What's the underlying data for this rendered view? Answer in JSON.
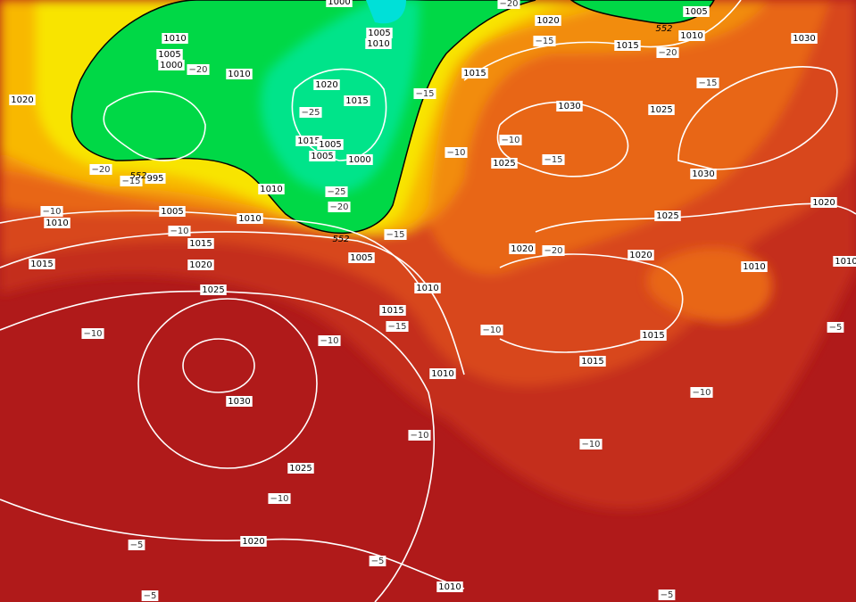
{
  "isobar_labels": [
    "1000",
    "1005",
    "1010",
    "1010",
    "1005",
    "1000",
    "1010",
    "1020",
    "1015",
    "1015",
    "1005",
    "1005",
    "1000",
    "1010",
    "995",
    "1020",
    "1005",
    "1010",
    "1010",
    "1015",
    "1015",
    "1020",
    "1025",
    "1005",
    "1010",
    "1015",
    "1030",
    "1025",
    "1020",
    "1010",
    "1010",
    "1015",
    "1020",
    "1015",
    "1005",
    "1010",
    "1030",
    "1030",
    "1025",
    "1025",
    "1030",
    "1025",
    "1020",
    "1020",
    "1020",
    "1010",
    "1015",
    "1015",
    "1010"
  ],
  "temperature_labels": [
    "−20",
    "−15",
    "−20",
    "−15",
    "−20",
    "−25",
    "−15",
    "−10",
    "−15",
    "−10",
    "−20",
    "−15",
    "−25",
    "−20",
    "−10",
    "−10",
    "−15",
    "−20",
    "−15",
    "−10",
    "−10",
    "−10",
    "−10",
    "−10",
    "−10",
    "−10",
    "−5",
    "−5",
    "−5",
    "−5",
    "−5"
  ],
  "thickness_labels": [
    "552",
    "552",
    "552"
  ]
}
